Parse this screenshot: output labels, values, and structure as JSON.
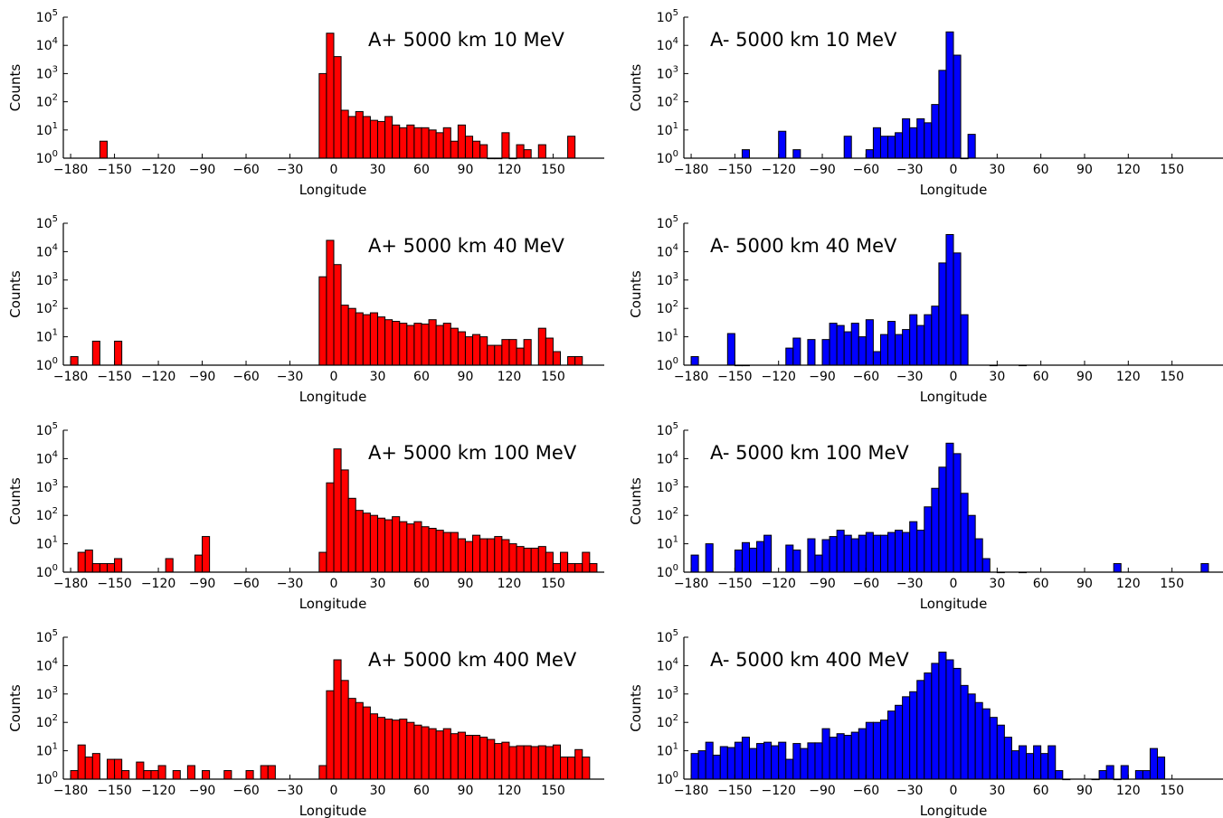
{
  "chart_data": [
    {
      "type": "bar",
      "title": "A+ 5000 km 10 MeV",
      "color": "#ff0000",
      "xlabel": "Longitude",
      "ylabel": "Counts",
      "xlim": [
        -185,
        185
      ],
      "ylim": [
        1,
        100000
      ],
      "yscale": "log",
      "xticks": [
        "−180",
        "−150",
        "−120",
        "−90",
        "−60",
        "−30",
        "0",
        "30",
        "60",
        "90",
        "120",
        "150"
      ],
      "bin_width": 5,
      "bins": [
        [
          -160,
          4
        ],
        [
          -10,
          1000
        ],
        [
          -5,
          27000
        ],
        [
          0,
          4000
        ],
        [
          5,
          50
        ],
        [
          10,
          30
        ],
        [
          15,
          45
        ],
        [
          20,
          30
        ],
        [
          25,
          22
        ],
        [
          30,
          20
        ],
        [
          35,
          30
        ],
        [
          40,
          15
        ],
        [
          45,
          12
        ],
        [
          50,
          15
        ],
        [
          55,
          12
        ],
        [
          60,
          12
        ],
        [
          65,
          10
        ],
        [
          70,
          8
        ],
        [
          75,
          12
        ],
        [
          80,
          4
        ],
        [
          85,
          15
        ],
        [
          90,
          6
        ],
        [
          95,
          4
        ],
        [
          100,
          3
        ],
        [
          105,
          1
        ],
        [
          110,
          1
        ],
        [
          115,
          8
        ],
        [
          120,
          1
        ],
        [
          125,
          3
        ],
        [
          130,
          2
        ],
        [
          140,
          3
        ],
        [
          160,
          6
        ]
      ]
    },
    {
      "type": "bar",
      "title": "A- 5000 km 10 MeV",
      "color": "#0000ff",
      "xlabel": "Longitude",
      "ylabel": "Counts",
      "xlim": [
        -185,
        185
      ],
      "ylim": [
        1,
        100000
      ],
      "yscale": "log",
      "xticks": [
        "−180",
        "−150",
        "−120",
        "−90",
        "−60",
        "−30",
        "0",
        "30",
        "60",
        "90",
        "120",
        "150"
      ],
      "bin_width": 5,
      "bins": [
        [
          -145,
          2
        ],
        [
          -120,
          9
        ],
        [
          -110,
          2
        ],
        [
          -75,
          6
        ],
        [
          -60,
          2
        ],
        [
          -55,
          12
        ],
        [
          -50,
          6
        ],
        [
          -45,
          6
        ],
        [
          -40,
          8
        ],
        [
          -35,
          25
        ],
        [
          -30,
          12
        ],
        [
          -25,
          25
        ],
        [
          -20,
          18
        ],
        [
          -15,
          80
        ],
        [
          -10,
          1300
        ],
        [
          -5,
          30000
        ],
        [
          0,
          4500
        ],
        [
          5,
          1
        ],
        [
          10,
          7
        ]
      ]
    },
    {
      "type": "bar",
      "title": "A+ 5000 km 40 MeV",
      "color": "#ff0000",
      "xlabel": "Longitude",
      "ylabel": "Counts",
      "xlim": [
        -185,
        185
      ],
      "ylim": [
        1,
        100000
      ],
      "yscale": "log",
      "xticks": [
        "−180",
        "−150",
        "−120",
        "−90",
        "−60",
        "−30",
        "0",
        "30",
        "60",
        "90",
        "120",
        "150"
      ],
      "bin_width": 5,
      "bins": [
        [
          -180,
          2
        ],
        [
          -165,
          7
        ],
        [
          -150,
          7
        ],
        [
          -10,
          1300
        ],
        [
          -5,
          25000
        ],
        [
          0,
          3500
        ],
        [
          5,
          130
        ],
        [
          10,
          100
        ],
        [
          15,
          70
        ],
        [
          20,
          60
        ],
        [
          25,
          70
        ],
        [
          30,
          50
        ],
        [
          35,
          40
        ],
        [
          40,
          35
        ],
        [
          45,
          30
        ],
        [
          50,
          25
        ],
        [
          55,
          30
        ],
        [
          60,
          28
        ],
        [
          65,
          40
        ],
        [
          70,
          25
        ],
        [
          75,
          30
        ],
        [
          80,
          20
        ],
        [
          85,
          15
        ],
        [
          90,
          10
        ],
        [
          95,
          12
        ],
        [
          100,
          10
        ],
        [
          105,
          5
        ],
        [
          110,
          5
        ],
        [
          115,
          8
        ],
        [
          120,
          8
        ],
        [
          125,
          4
        ],
        [
          130,
          8
        ],
        [
          140,
          20
        ],
        [
          145,
          9
        ],
        [
          150,
          3
        ],
        [
          160,
          2
        ],
        [
          165,
          2
        ]
      ]
    },
    {
      "type": "bar",
      "title": "A- 5000 km 40 MeV",
      "color": "#0000ff",
      "xlabel": "Longitude",
      "ylabel": "Counts",
      "xlim": [
        -185,
        185
      ],
      "ylim": [
        1,
        100000
      ],
      "yscale": "log",
      "xticks": [
        "−180",
        "−150",
        "−120",
        "−90",
        "−60",
        "−30",
        "0",
        "30",
        "60",
        "90",
        "120",
        "150"
      ],
      "bin_width": 5,
      "bins": [
        [
          -180,
          2
        ],
        [
          -155,
          13
        ],
        [
          -150,
          1
        ],
        [
          -145,
          1
        ],
        [
          -115,
          4
        ],
        [
          -110,
          9
        ],
        [
          -100,
          8
        ],
        [
          -90,
          8
        ],
        [
          -85,
          30
        ],
        [
          -80,
          25
        ],
        [
          -75,
          15
        ],
        [
          -70,
          30
        ],
        [
          -65,
          10
        ],
        [
          -60,
          40
        ],
        [
          -55,
          3
        ],
        [
          -50,
          12
        ],
        [
          -45,
          35
        ],
        [
          -40,
          12
        ],
        [
          -35,
          18
        ],
        [
          -30,
          60
        ],
        [
          -25,
          25
        ],
        [
          -20,
          60
        ],
        [
          -15,
          120
        ],
        [
          -10,
          4000
        ],
        [
          -5,
          40000
        ],
        [
          0,
          9000
        ],
        [
          5,
          60
        ],
        [
          25,
          1
        ],
        [
          45,
          1
        ]
      ]
    },
    {
      "type": "bar",
      "title": "A+ 5000 km 100 MeV",
      "color": "#ff0000",
      "xlabel": "Longitude",
      "ylabel": "Counts",
      "xlim": [
        -185,
        185
      ],
      "ylim": [
        1,
        100000
      ],
      "yscale": "log",
      "xticks": [
        "−180",
        "−150",
        "−120",
        "−90",
        "−60",
        "−30",
        "0",
        "30",
        "60",
        "90",
        "120",
        "150"
      ],
      "bin_width": 5,
      "bins": [
        [
          -175,
          5
        ],
        [
          -170,
          6
        ],
        [
          -165,
          2
        ],
        [
          -160,
          2
        ],
        [
          -155,
          2
        ],
        [
          -150,
          3
        ],
        [
          -115,
          3
        ],
        [
          -95,
          4
        ],
        [
          -90,
          18
        ],
        [
          -10,
          5
        ],
        [
          -5,
          1400
        ],
        [
          0,
          22000
        ],
        [
          5,
          4000
        ],
        [
          10,
          400
        ],
        [
          15,
          150
        ],
        [
          20,
          120
        ],
        [
          25,
          100
        ],
        [
          30,
          80
        ],
        [
          35,
          70
        ],
        [
          40,
          90
        ],
        [
          45,
          60
        ],
        [
          50,
          50
        ],
        [
          55,
          60
        ],
        [
          60,
          40
        ],
        [
          65,
          35
        ],
        [
          70,
          30
        ],
        [
          75,
          25
        ],
        [
          80,
          25
        ],
        [
          85,
          15
        ],
        [
          90,
          12
        ],
        [
          95,
          20
        ],
        [
          100,
          15
        ],
        [
          105,
          15
        ],
        [
          110,
          18
        ],
        [
          115,
          14
        ],
        [
          120,
          10
        ],
        [
          125,
          8
        ],
        [
          130,
          7
        ],
        [
          135,
          7
        ],
        [
          140,
          8
        ],
        [
          145,
          5
        ],
        [
          150,
          2
        ],
        [
          155,
          5
        ],
        [
          160,
          2
        ],
        [
          165,
          2
        ],
        [
          170,
          5
        ],
        [
          175,
          2
        ]
      ]
    },
    {
      "type": "bar",
      "title": "A- 5000 km 100 MeV",
      "color": "#0000ff",
      "xlabel": "Longitude",
      "ylabel": "Counts",
      "xlim": [
        -185,
        185
      ],
      "ylim": [
        1,
        100000
      ],
      "yscale": "log",
      "xticks": [
        "−180",
        "−150",
        "−120",
        "−90",
        "−60",
        "−30",
        "0",
        "30",
        "60",
        "90",
        "120",
        "150"
      ],
      "bin_width": 5,
      "bins": [
        [
          -180,
          4
        ],
        [
          -170,
          10
        ],
        [
          -150,
          6
        ],
        [
          -145,
          11
        ],
        [
          -140,
          7
        ],
        [
          -135,
          12
        ],
        [
          -130,
          20
        ],
        [
          -115,
          9
        ],
        [
          -110,
          6
        ],
        [
          -100,
          15
        ],
        [
          -95,
          4
        ],
        [
          -90,
          14
        ],
        [
          -85,
          18
        ],
        [
          -80,
          30
        ],
        [
          -75,
          20
        ],
        [
          -70,
          15
        ],
        [
          -65,
          20
        ],
        [
          -60,
          25
        ],
        [
          -55,
          20
        ],
        [
          -50,
          20
        ],
        [
          -45,
          25
        ],
        [
          -40,
          30
        ],
        [
          -35,
          25
        ],
        [
          -30,
          60
        ],
        [
          -25,
          30
        ],
        [
          -20,
          200
        ],
        [
          -15,
          900
        ],
        [
          -10,
          5000
        ],
        [
          -5,
          35000
        ],
        [
          0,
          15000
        ],
        [
          5,
          600
        ],
        [
          10,
          100
        ],
        [
          15,
          15
        ],
        [
          20,
          3
        ],
        [
          30,
          1
        ],
        [
          45,
          1
        ],
        [
          110,
          2
        ],
        [
          170,
          2
        ]
      ]
    },
    {
      "type": "bar",
      "title": "A+ 5000 km 400 MeV",
      "color": "#ff0000",
      "xlabel": "Longitude",
      "ylabel": "Counts",
      "xlim": [
        -185,
        185
      ],
      "ylim": [
        1,
        100000
      ],
      "yscale": "log",
      "xticks": [
        "−180",
        "−150",
        "−120",
        "−90",
        "−60",
        "−30",
        "0",
        "30",
        "60",
        "90",
        "120",
        "150"
      ],
      "bin_width": 5,
      "bins": [
        [
          -180,
          2
        ],
        [
          -175,
          16
        ],
        [
          -170,
          6
        ],
        [
          -165,
          8
        ],
        [
          -155,
          5
        ],
        [
          -150,
          5
        ],
        [
          -145,
          2
        ],
        [
          -135,
          4
        ],
        [
          -130,
          2
        ],
        [
          -125,
          2
        ],
        [
          -120,
          3
        ],
        [
          -110,
          2
        ],
        [
          -100,
          3
        ],
        [
          -90,
          2
        ],
        [
          -75,
          2
        ],
        [
          -60,
          2
        ],
        [
          -50,
          3
        ],
        [
          -45,
          3
        ],
        [
          -10,
          3
        ],
        [
          -5,
          1300
        ],
        [
          0,
          16000
        ],
        [
          5,
          3000
        ],
        [
          10,
          700
        ],
        [
          15,
          500
        ],
        [
          20,
          350
        ],
        [
          25,
          200
        ],
        [
          30,
          150
        ],
        [
          35,
          130
        ],
        [
          40,
          120
        ],
        [
          45,
          130
        ],
        [
          50,
          100
        ],
        [
          55,
          80
        ],
        [
          60,
          70
        ],
        [
          65,
          60
        ],
        [
          70,
          50
        ],
        [
          75,
          60
        ],
        [
          80,
          40
        ],
        [
          85,
          45
        ],
        [
          90,
          35
        ],
        [
          95,
          35
        ],
        [
          100,
          30
        ],
        [
          105,
          25
        ],
        [
          110,
          18
        ],
        [
          115,
          20
        ],
        [
          120,
          14
        ],
        [
          125,
          15
        ],
        [
          130,
          15
        ],
        [
          135,
          14
        ],
        [
          140,
          15
        ],
        [
          145,
          14
        ],
        [
          150,
          16
        ],
        [
          155,
          6
        ],
        [
          160,
          6
        ],
        [
          165,
          11
        ],
        [
          170,
          6
        ]
      ]
    },
    {
      "type": "bar",
      "title": "A- 5000 km 400 MeV",
      "color": "#0000ff",
      "xlabel": "Longitude",
      "ylabel": "Counts",
      "xlim": [
        -185,
        185
      ],
      "ylim": [
        1,
        100000
      ],
      "yscale": "log",
      "xticks": [
        "−180",
        "−150",
        "−120",
        "−90",
        "−60",
        "−30",
        "0",
        "30",
        "60",
        "90",
        "120",
        "150"
      ],
      "bin_width": 5,
      "bins": [
        [
          -180,
          8
        ],
        [
          -175,
          10
        ],
        [
          -170,
          20
        ],
        [
          -165,
          7
        ],
        [
          -160,
          14
        ],
        [
          -155,
          13
        ],
        [
          -150,
          20
        ],
        [
          -145,
          30
        ],
        [
          -140,
          12
        ],
        [
          -135,
          18
        ],
        [
          -130,
          20
        ],
        [
          -125,
          15
        ],
        [
          -120,
          20
        ],
        [
          -115,
          5
        ],
        [
          -110,
          18
        ],
        [
          -105,
          12
        ],
        [
          -100,
          19
        ],
        [
          -95,
          19
        ],
        [
          -90,
          60
        ],
        [
          -85,
          30
        ],
        [
          -80,
          40
        ],
        [
          -75,
          35
        ],
        [
          -70,
          45
        ],
        [
          -65,
          60
        ],
        [
          -60,
          100
        ],
        [
          -55,
          100
        ],
        [
          -50,
          120
        ],
        [
          -45,
          250
        ],
        [
          -40,
          400
        ],
        [
          -35,
          800
        ],
        [
          -30,
          1200
        ],
        [
          -25,
          3000
        ],
        [
          -20,
          5500
        ],
        [
          -15,
          12000
        ],
        [
          -10,
          30000
        ],
        [
          -5,
          16000
        ],
        [
          0,
          8000
        ],
        [
          5,
          2000
        ],
        [
          10,
          1000
        ],
        [
          15,
          500
        ],
        [
          20,
          300
        ],
        [
          25,
          150
        ],
        [
          30,
          80
        ],
        [
          35,
          30
        ],
        [
          40,
          10
        ],
        [
          45,
          15
        ],
        [
          50,
          8
        ],
        [
          55,
          15
        ],
        [
          60,
          8
        ],
        [
          65,
          15
        ],
        [
          70,
          2
        ],
        [
          75,
          1
        ],
        [
          95,
          1
        ],
        [
          100,
          2
        ],
        [
          105,
          3
        ],
        [
          110,
          1
        ],
        [
          115,
          3
        ],
        [
          125,
          2
        ],
        [
          130,
          2
        ],
        [
          135,
          12
        ],
        [
          140,
          6
        ]
      ]
    }
  ]
}
